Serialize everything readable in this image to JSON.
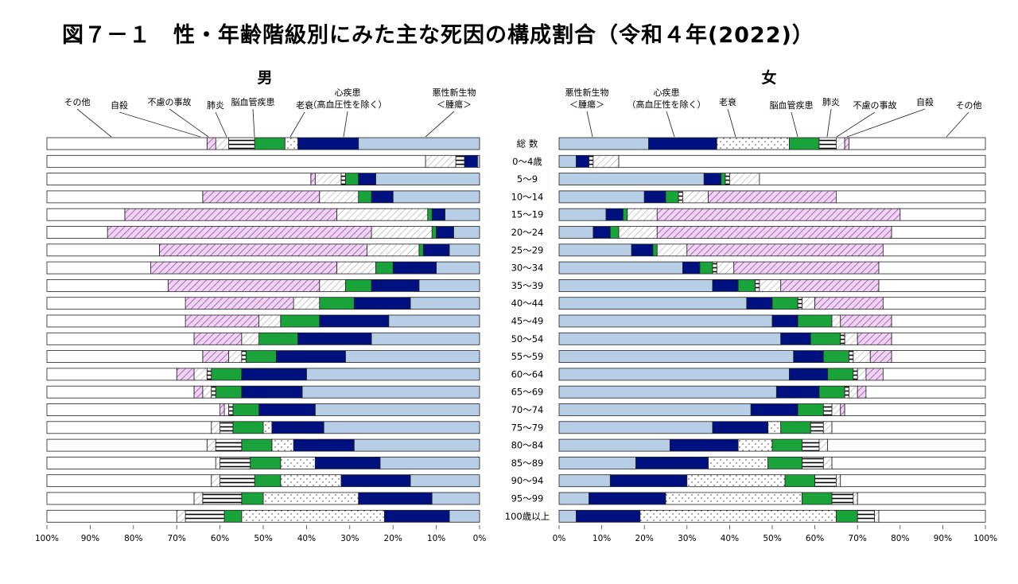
{
  "title": "図７－１　性・年齢階級別にみた主な死因の構成割合（令和４年(2022)）",
  "categories_label_order": [
    "総 数",
    "0～4歳",
    "5～9",
    "10～14",
    "15～19",
    "20～24",
    "25～29",
    "30～34",
    "35～39",
    "40～44",
    "45～49",
    "50～54",
    "55～59",
    "60～64",
    "65～69",
    "70～74",
    "75～79",
    "80～84",
    "85～89",
    "90～94",
    "95～99",
    "100歳以上"
  ],
  "colors": {
    "悪性新生物": "#b8cde6",
    "心疾患": "#00107e",
    "老衰": "#ffffff",
    "脳血管疾患": "#1aa33a",
    "肺炎": "#ffffff",
    "不慮の事故": "#ffffff",
    "自殺": "#e8c8ee",
    "その他": "#ffffff"
  },
  "legend": {
    "male": [
      "その他",
      "自殺",
      "不慮の事故",
      "肺炎",
      "脳血管疾患",
      "老衰",
      "心疾患\n（高血圧性を除く）",
      "悪性新生物\n＜腫瘍＞"
    ],
    "female": [
      "悪性新生物\n＜腫瘍＞",
      "心疾患\n（高血圧性を除く）",
      "老衰",
      "脳血管疾患",
      "肺炎",
      "不慮の事故",
      "自殺",
      "その他"
    ]
  },
  "chart_data": [
    {
      "type": "bar",
      "title": "男",
      "orientation": "horizontal-stacked",
      "direction": "right-to-left",
      "xlim": [
        0,
        100
      ],
      "xticks": [
        "100%",
        "90%",
        "80%",
        "70%",
        "60%",
        "50%",
        "40%",
        "30%",
        "20%",
        "10%",
        "0%"
      ],
      "categories": [
        "総 数",
        "0～4歳",
        "5～9",
        "10～14",
        "15～19",
        "20～24",
        "25～29",
        "30～34",
        "35～39",
        "40～44",
        "45～49",
        "50～54",
        "55～59",
        "60～64",
        "65～69",
        "70～74",
        "75～79",
        "80～84",
        "85～89",
        "90～94",
        "95～99",
        "100歳以上"
      ],
      "series": [
        {
          "name": "悪性新生物",
          "values": [
            28,
            0.5,
            24,
            20,
            8,
            6,
            7,
            10,
            14,
            16,
            21,
            25,
            31,
            40,
            41,
            38,
            36,
            29,
            23,
            16,
            11,
            7
          ]
        },
        {
          "name": "心疾患",
          "values": [
            14,
            3,
            4,
            5,
            3,
            4,
            6,
            10,
            11,
            13,
            16,
            17,
            16,
            15,
            14,
            13,
            12,
            14,
            15,
            16,
            17,
            15
          ]
        },
        {
          "name": "老衰",
          "values": [
            3,
            0,
            0,
            0,
            0,
            0,
            0,
            0,
            0,
            0,
            0,
            0,
            0,
            0,
            0,
            0,
            2,
            5,
            8,
            14,
            22,
            33
          ]
        },
        {
          "name": "脳血管疾患",
          "values": [
            7,
            0,
            3,
            3,
            1,
            1,
            1,
            4,
            6,
            8,
            9,
            9,
            7,
            7,
            6,
            6,
            7,
            7,
            7,
            6,
            5,
            4
          ]
        },
        {
          "name": "肺炎",
          "values": [
            6,
            2,
            1,
            0,
            0,
            0,
            0,
            0,
            0,
            0,
            0,
            0,
            1,
            1,
            1,
            1,
            3,
            6,
            7,
            8,
            9,
            9
          ]
        },
        {
          "name": "不慮の事故",
          "values": [
            3,
            7,
            6,
            9,
            21,
            14,
            12,
            9,
            6,
            6,
            5,
            4,
            3,
            3,
            2,
            1,
            2,
            2,
            1,
            2,
            2,
            2
          ]
        },
        {
          "name": "自殺",
          "values": [
            2,
            0,
            1,
            27,
            49,
            61,
            48,
            43,
            35,
            25,
            17,
            11,
            6,
            4,
            2,
            1,
            0,
            0,
            0,
            0,
            0,
            0
          ]
        },
        {
          "name": "その他",
          "values": [
            37,
            87.5,
            61,
            36,
            18,
            14,
            26,
            24,
            28,
            32,
            32,
            34,
            36,
            30,
            34,
            40,
            38,
            37,
            39,
            38,
            34,
            30
          ]
        }
      ]
    },
    {
      "type": "bar",
      "title": "女",
      "orientation": "horizontal-stacked",
      "direction": "left-to-right",
      "xlim": [
        0,
        100
      ],
      "xticks": [
        "0%",
        "10%",
        "20%",
        "30%",
        "40%",
        "50%",
        "60%",
        "70%",
        "80%",
        "90%",
        "100%"
      ],
      "categories": [
        "総 数",
        "0～4歳",
        "5～9",
        "10～14",
        "15～19",
        "20～24",
        "25～29",
        "30～34",
        "35～39",
        "40～44",
        "45～49",
        "50～54",
        "55～59",
        "60～64",
        "65～69",
        "70～74",
        "75～79",
        "80～84",
        "85～89",
        "90～94",
        "95～99",
        "100歳以上"
      ],
      "series": [
        {
          "name": "悪性新生物",
          "values": [
            21,
            4,
            34,
            20,
            11,
            8,
            17,
            29,
            36,
            44,
            50,
            52,
            55,
            54,
            51,
            45,
            36,
            26,
            18,
            12,
            7,
            4
          ]
        },
        {
          "name": "心疾患",
          "values": [
            16,
            3,
            4,
            5,
            4,
            4,
            5,
            4,
            6,
            6,
            6,
            7,
            7,
            9,
            10,
            11,
            13,
            16,
            17,
            18,
            18,
            15
          ]
        },
        {
          "name": "老衰",
          "values": [
            17,
            0,
            0,
            0,
            0,
            0,
            0,
            0,
            0,
            0,
            0,
            0,
            0,
            0,
            0,
            0,
            3,
            8,
            14,
            23,
            32,
            46
          ]
        },
        {
          "name": "脳血管疾患",
          "values": [
            7,
            0,
            1,
            3,
            1,
            2,
            1,
            3,
            4,
            6,
            8,
            7,
            6,
            6,
            6,
            6,
            7,
            7,
            8,
            7,
            7,
            5
          ]
        },
        {
          "name": "肺炎",
          "values": [
            4,
            1,
            1,
            1,
            0,
            0,
            0,
            1,
            1,
            1,
            0,
            1,
            1,
            1,
            1,
            2,
            3,
            4,
            5,
            5,
            5,
            4
          ]
        },
        {
          "name": "不慮の事故",
          "values": [
            2,
            6,
            7,
            6,
            7,
            9,
            7,
            4,
            5,
            3,
            2,
            3,
            4,
            2,
            2,
            2,
            2,
            2,
            2,
            1,
            1,
            1
          ]
        },
        {
          "name": "自殺",
          "values": [
            1,
            0,
            0,
            30,
            57,
            55,
            46,
            34,
            23,
            16,
            12,
            8,
            5,
            4,
            2,
            1,
            0,
            0,
            0,
            0,
            0,
            0
          ]
        },
        {
          "name": "その他",
          "values": [
            32,
            86,
            53,
            35,
            20,
            22,
            24,
            25,
            25,
            24,
            22,
            22,
            22,
            24,
            28,
            33,
            36,
            37,
            36,
            34,
            30,
            25
          ]
        }
      ]
    }
  ]
}
